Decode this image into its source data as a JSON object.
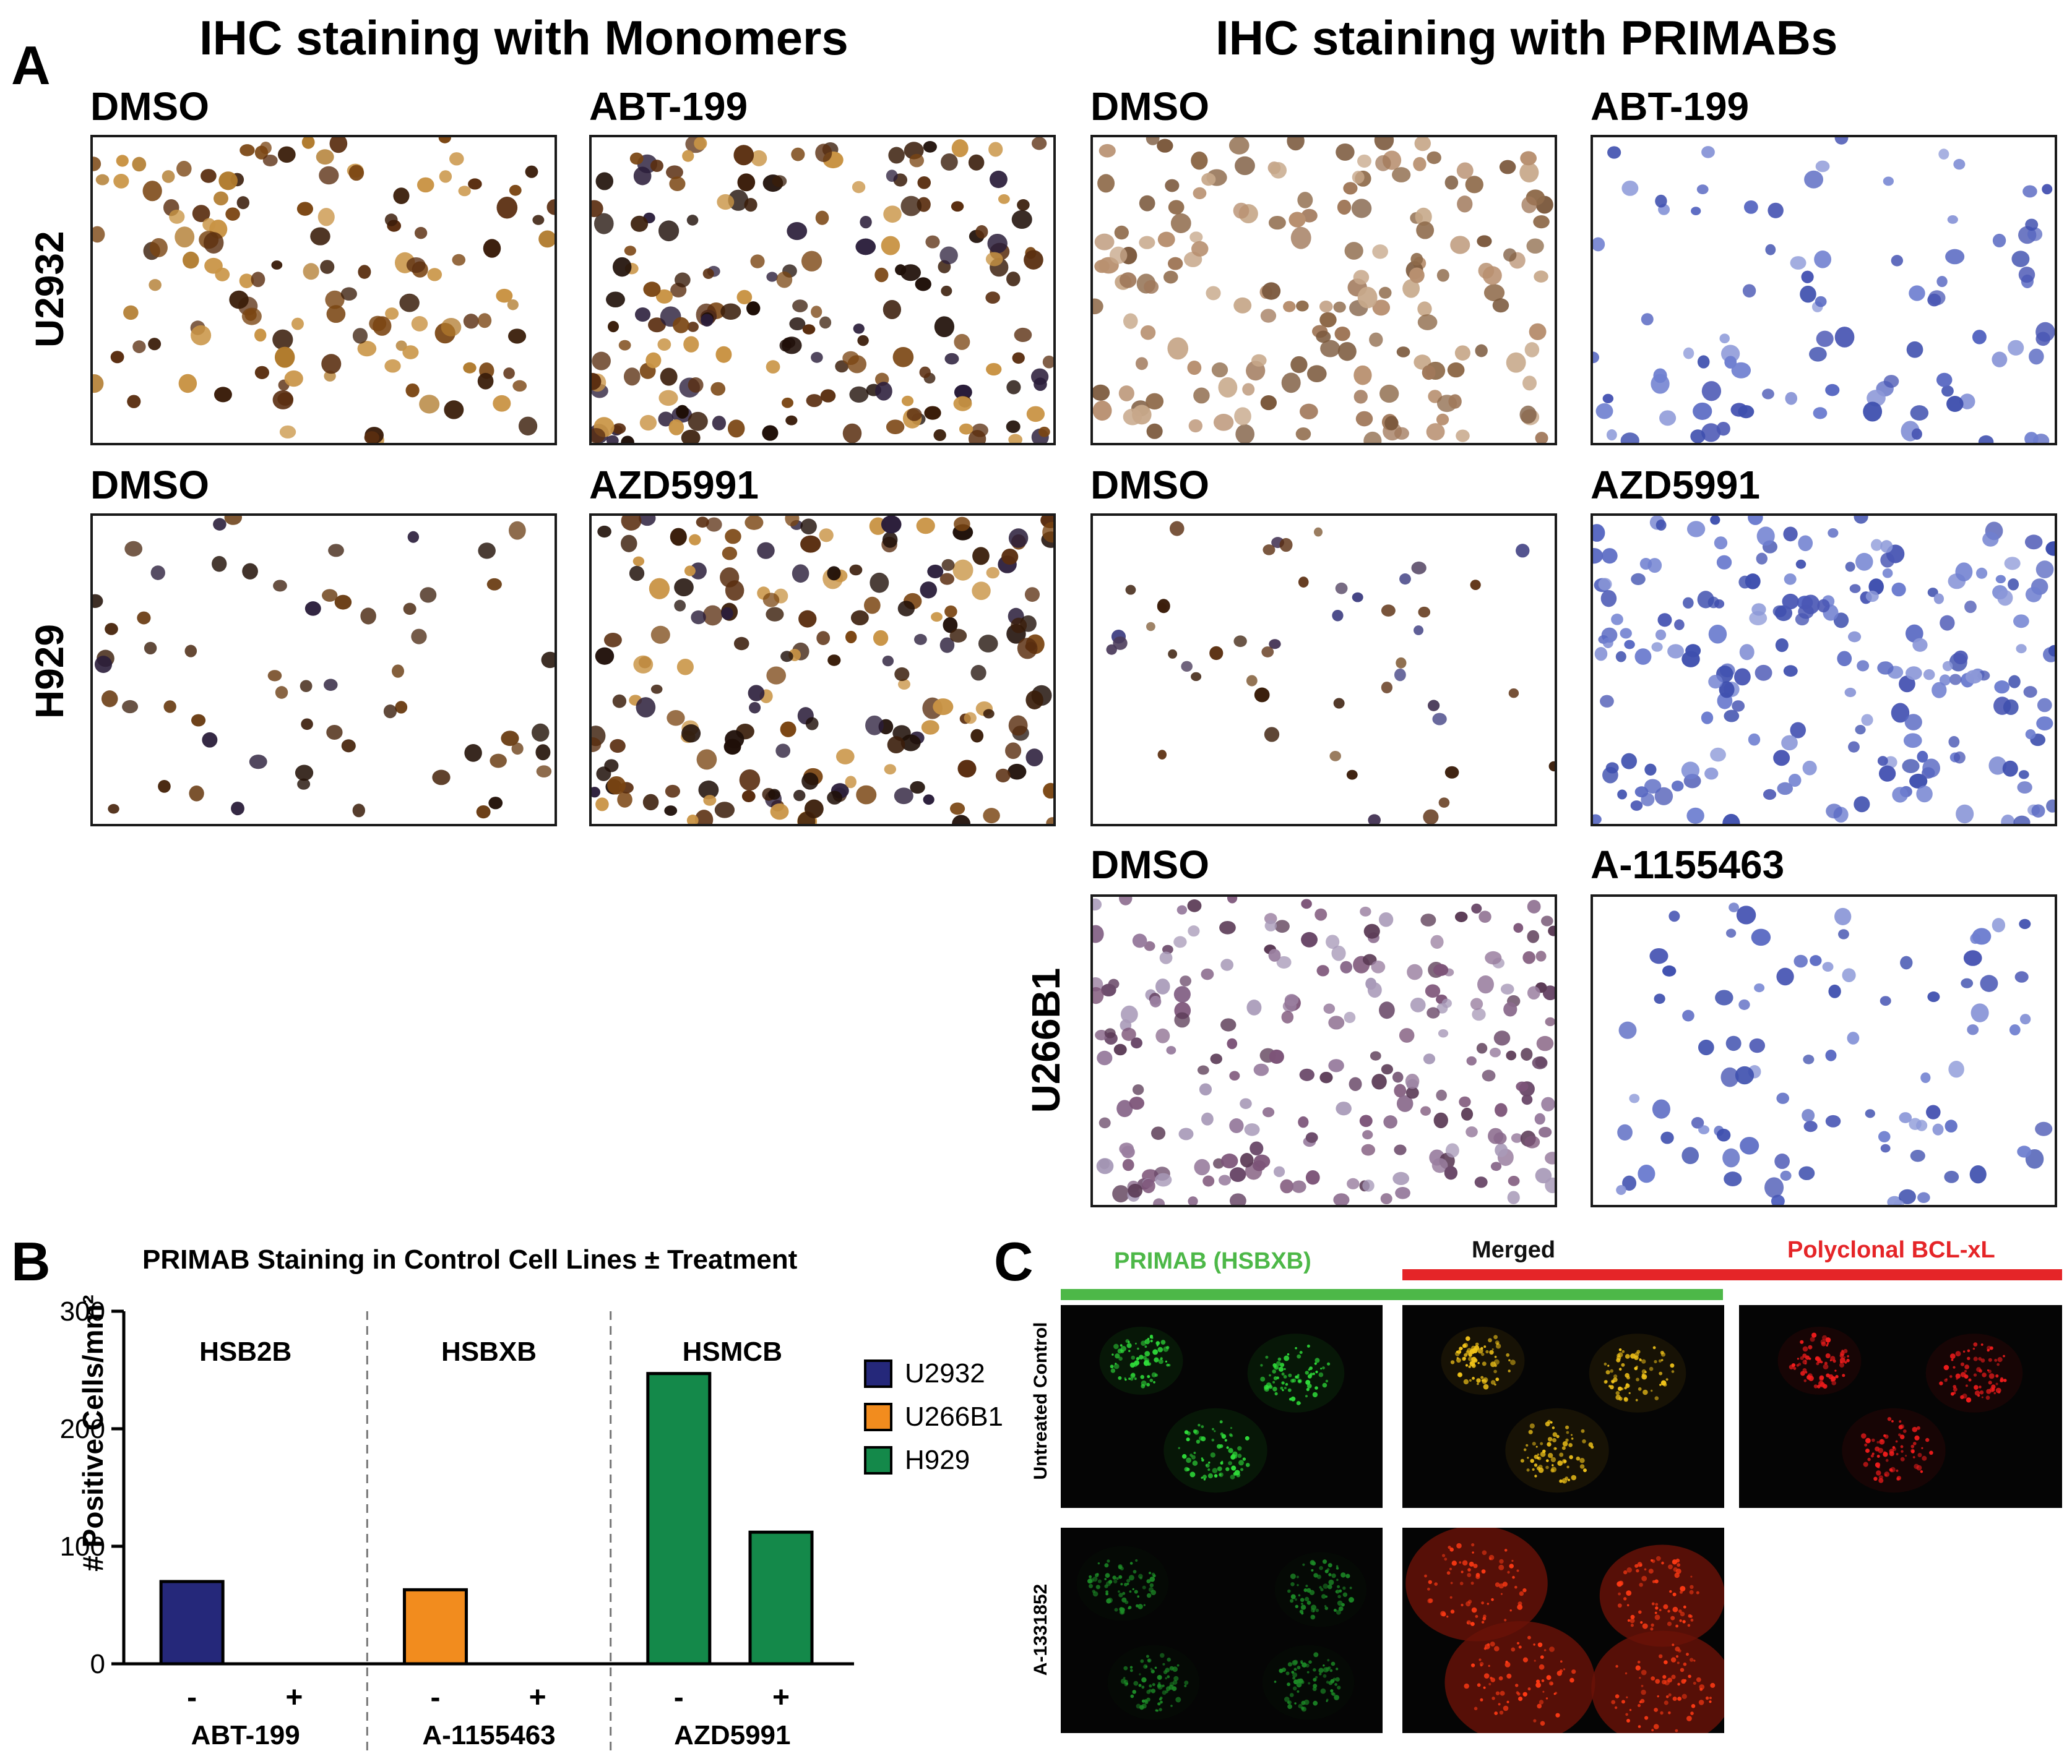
{
  "panel_a": {
    "letter": "A",
    "title_left": "IHC staining with Monomers",
    "title_right": "IHC staining with PRIMABs",
    "rows": [
      {
        "cell_line": "U2932",
        "images": [
          "DMSO",
          "ABT-199",
          "DMSO",
          "ABT-199"
        ]
      },
      {
        "cell_line": "H929",
        "images": [
          "DMSO",
          "AZD5991",
          "DMSO",
          "AZD5991"
        ]
      },
      {
        "cell_line": "U266B1",
        "images": [
          "DMSO",
          "A-1155463"
        ]
      }
    ]
  },
  "panel_b": {
    "letter": "B",
    "chart_data": {
      "type": "bar",
      "title": "PRIMAB Staining in Control Cell Lines ± Treatment",
      "ylabel": "# Positive Cells/mm²",
      "ylim": [
        0,
        300
      ],
      "yticks": [
        0,
        100,
        200,
        300
      ],
      "groups": [
        {
          "antibody": "HSB2B",
          "treatment": "ABT-199",
          "series": "U2932",
          "bars": [
            {
              "x": "-",
              "value": 70
            },
            {
              "x": "+",
              "value": 0
            }
          ]
        },
        {
          "antibody": "HSBXB",
          "treatment": "A-1155463",
          "series": "U266B1",
          "bars": [
            {
              "x": "-",
              "value": 63
            },
            {
              "x": "+",
              "value": 0
            }
          ]
        },
        {
          "antibody": "HSMCB",
          "treatment": "AZD5991",
          "series": "H929",
          "bars": [
            {
              "x": "-",
              "value": 247
            },
            {
              "x": "+",
              "value": 112
            }
          ]
        }
      ],
      "legend": [
        {
          "name": "U2932",
          "color": "#25287a"
        },
        {
          "name": "U266B1",
          "color": "#f28c1e"
        },
        {
          "name": "H929",
          "color": "#14894a"
        }
      ],
      "legend_position": "right"
    }
  },
  "panel_c": {
    "letter": "C",
    "col_headers": [
      "PRIMAB (HSBXB)",
      "Merged",
      "Polyclonal BCL-xL"
    ],
    "header_colors": [
      "#4db848",
      "#111111",
      "#e52528"
    ],
    "row_labels": [
      "Untreated Control",
      "A-1331852"
    ]
  }
}
